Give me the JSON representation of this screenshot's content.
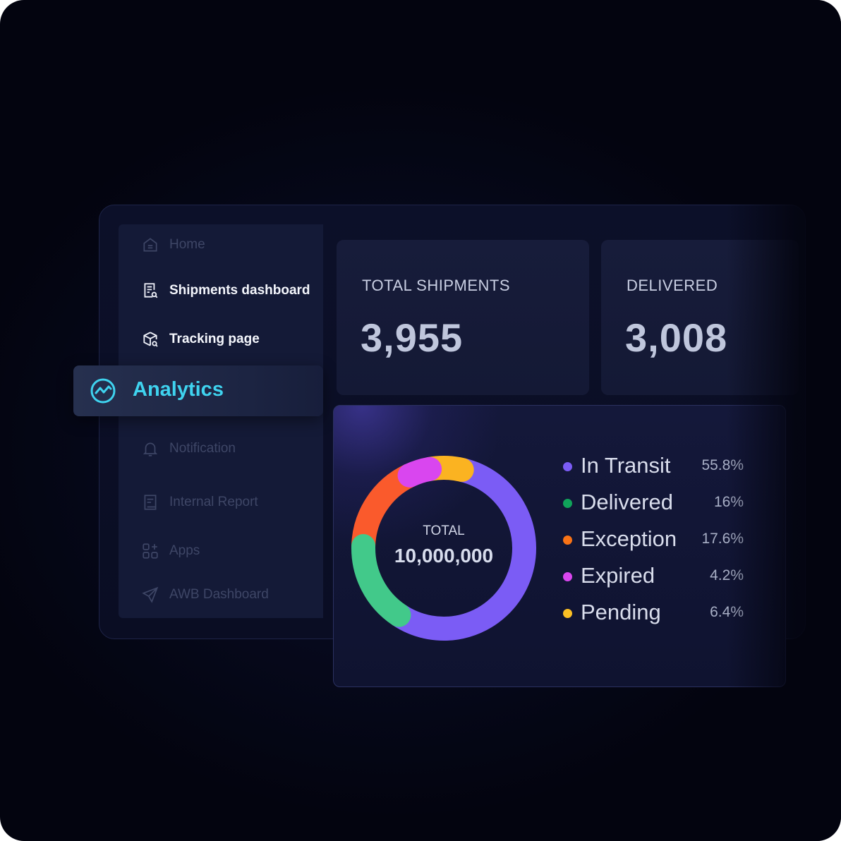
{
  "sidebar": {
    "items": [
      {
        "label": "Home",
        "icon": "home-icon"
      },
      {
        "label": "Shipments dashboard",
        "icon": "document-search-icon"
      },
      {
        "label": "Tracking page",
        "icon": "package-search-icon"
      },
      {
        "label": "Analytics",
        "icon": "analytics-icon",
        "active": true
      },
      {
        "label": "Notification",
        "icon": "bell-icon"
      },
      {
        "label": "Internal Report",
        "icon": "report-icon"
      },
      {
        "label": "Apps",
        "icon": "apps-grid-icon"
      },
      {
        "label": "AWB Dashboard",
        "icon": "airplane-icon"
      }
    ]
  },
  "stats": {
    "total_shipments": {
      "label": "TOTAL SHIPMENTS",
      "value": "3,955"
    },
    "delivered": {
      "label": "DELIVERED",
      "value": "3,008"
    }
  },
  "chart_data": {
    "type": "pie",
    "center_label": "TOTAL",
    "center_value": "10,000,000",
    "categories": [
      "In Transit",
      "Delivered",
      "Exception",
      "Expired",
      "Pending"
    ],
    "values": [
      55.8,
      16,
      17.6,
      4.2,
      6.4
    ],
    "value_labels": [
      "55.8%",
      "16%",
      "17.6%",
      "4.2%",
      "6.4%"
    ],
    "colors": [
      "#7b5cf5",
      "#42c98a",
      "#fa5a2c",
      "#d946ef",
      "#fbb321"
    ],
    "legend_colors": [
      "#7b5cf5",
      "#10a35a",
      "#f97316",
      "#d946ef",
      "#fbbf24"
    ]
  }
}
